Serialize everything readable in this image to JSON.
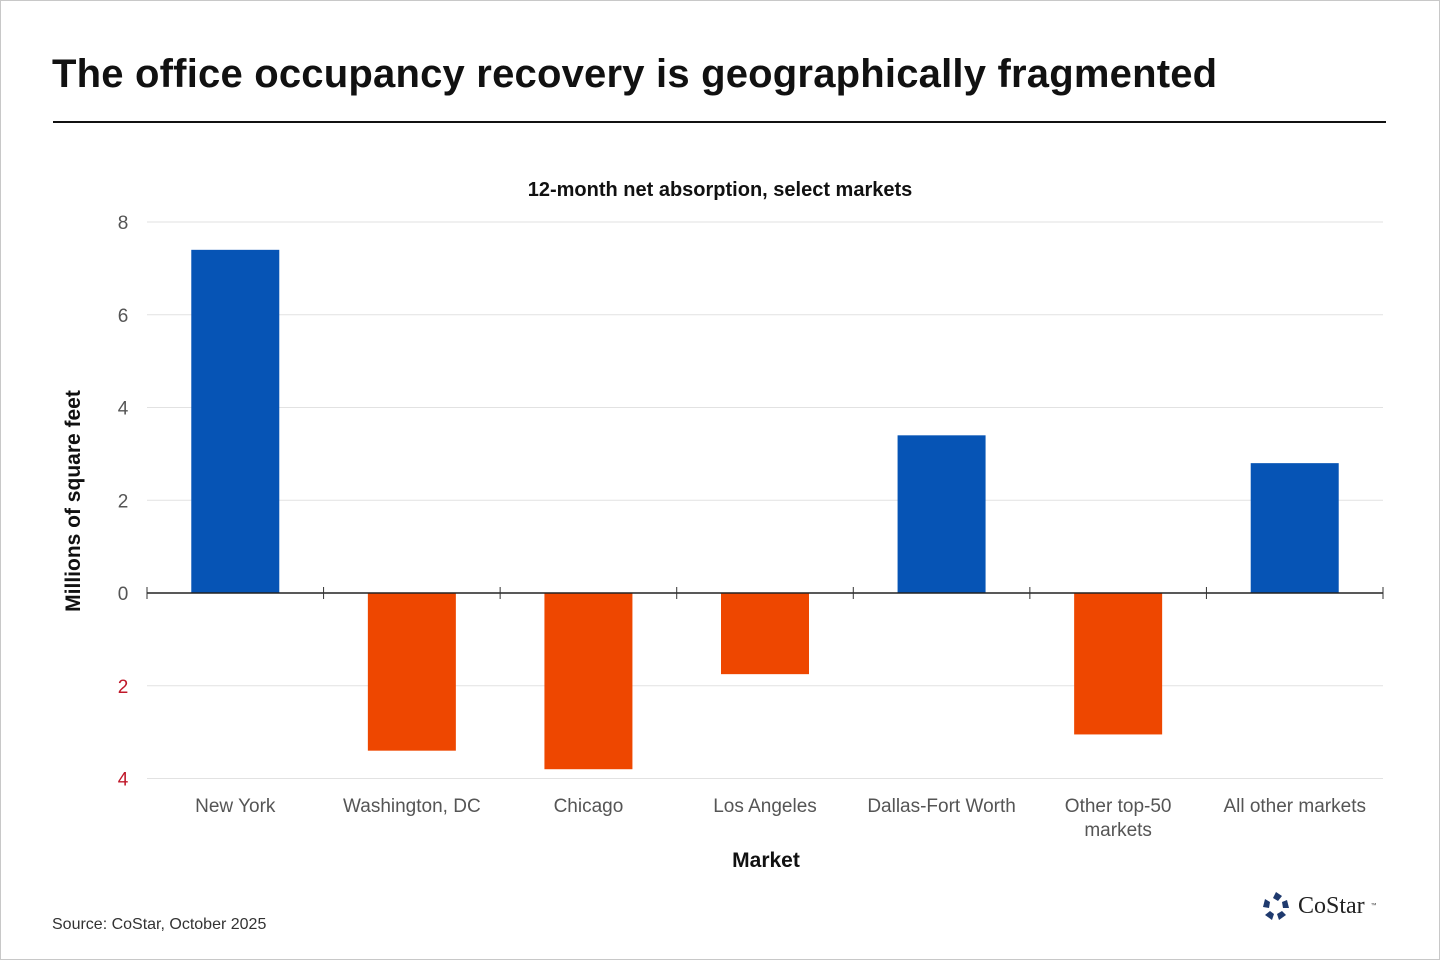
{
  "header": {
    "title": "The office occupancy recovery is geographically fragmented"
  },
  "footer": {
    "source": "Source: CoStar, October 2025",
    "logo_text": "CoStar",
    "logo_tm": "™"
  },
  "colors": {
    "positive": "#0654b5",
    "negative": "#ee4700",
    "negative_tick": "#c0182a"
  },
  "chart_data": {
    "type": "bar",
    "title": "12-month net absorption, select markets",
    "xlabel": "Market",
    "ylabel": "Millions of square feet",
    "ylim": [
      -4,
      8
    ],
    "yticks": [
      {
        "value": 8,
        "label": "8"
      },
      {
        "value": 6,
        "label": "6"
      },
      {
        "value": 4,
        "label": "4"
      },
      {
        "value": 2,
        "label": "2"
      },
      {
        "value": 0,
        "label": "0"
      },
      {
        "value": -2,
        "label": "2"
      },
      {
        "value": -4,
        "label": "4"
      }
    ],
    "grid": true,
    "categories": [
      "New York",
      "Washington, DC",
      "Chicago",
      "Los Angeles",
      "Dallas-Fort Worth",
      "Other top-50 markets",
      "All other markets"
    ],
    "values": [
      7.4,
      -3.4,
      -3.8,
      -1.75,
      3.4,
      -3.05,
      2.8
    ]
  }
}
